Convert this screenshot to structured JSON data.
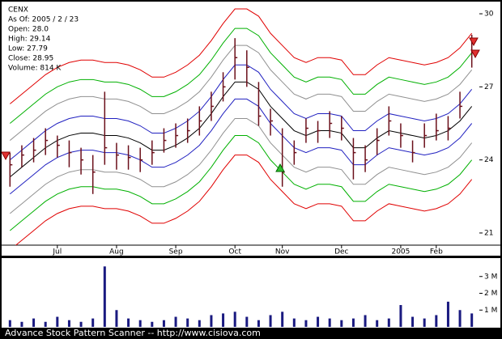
{
  "chart_data": [
    {
      "type": "ohlc",
      "categories": [
        null,
        null,
        null,
        null,
        "Jul",
        null,
        null,
        null,
        null,
        "Aug",
        null,
        null,
        null,
        null,
        "Sep",
        null,
        null,
        null,
        null,
        "Oct",
        null,
        null,
        null,
        "Nov",
        null,
        null,
        null,
        null,
        "Dec",
        null,
        null,
        null,
        null,
        "2005",
        null,
        null,
        "Feb",
        null,
        null,
        null
      ],
      "high": [
        24.3,
        24.6,
        24.9,
        25.3,
        25.0,
        24.8,
        24.5,
        24.2,
        26.8,
        24.7,
        24.6,
        24.5,
        24.8,
        25.3,
        25.5,
        25.7,
        26.2,
        26.8,
        27.6,
        29.0,
        28.5,
        27.2,
        26.1,
        25.3,
        24.8,
        25.7,
        25.6,
        26.0,
        25.8,
        24.9,
        24.6,
        25.3,
        26.2,
        25.5,
        24.8,
        25.5,
        25.9,
        25.8,
        26.8,
        29.14
      ],
      "low": [
        22.9,
        23.7,
        23.9,
        24.2,
        24.1,
        23.7,
        23.4,
        22.6,
        23.8,
        23.6,
        23.6,
        23.5,
        23.8,
        24.3,
        24.5,
        24.7,
        25.0,
        25.6,
        26.4,
        27.3,
        27.0,
        25.4,
        25.0,
        22.9,
        23.8,
        24.7,
        24.7,
        24.9,
        24.8,
        23.2,
        23.5,
        24.2,
        25.0,
        24.5,
        23.9,
        24.5,
        24.8,
        24.8,
        25.7,
        27.79
      ],
      "close": [
        23.8,
        24.2,
        24.4,
        24.8,
        24.6,
        24.3,
        24.0,
        23.5,
        24.5,
        24.2,
        24.1,
        24.0,
        24.3,
        24.8,
        25.0,
        25.2,
        25.6,
        26.2,
        27.0,
        28.2,
        27.8,
        25.8,
        25.6,
        23.5,
        24.3,
        25.3,
        25.2,
        25.5,
        25.3,
        24.3,
        24.0,
        24.8,
        25.6,
        25.0,
        24.3,
        25.0,
        25.2,
        25.3,
        26.2,
        28.95
      ],
      "color": "#6b0f1a",
      "series": [
        {
          "color": "#e00000",
          "values": [
            26.3,
            26.7,
            27.1,
            27.5,
            27.8,
            28.0,
            28.1,
            28.1,
            28.0,
            28.0,
            27.9,
            27.7,
            27.4,
            27.4,
            27.6,
            27.9,
            28.3,
            28.9,
            29.6,
            30.2,
            30.2,
            29.9,
            29.2,
            28.7,
            28.2,
            28.0,
            28.2,
            28.2,
            28.1,
            27.5,
            27.5,
            27.9,
            28.2,
            28.1,
            28.0,
            27.9,
            28.0,
            28.2,
            28.6,
            29.2
          ]
        },
        {
          "color": "#00b000",
          "values": [
            25.5,
            25.9,
            26.3,
            26.7,
            27.0,
            27.2,
            27.3,
            27.3,
            27.2,
            27.2,
            27.1,
            26.9,
            26.6,
            26.6,
            26.8,
            27.1,
            27.5,
            28.1,
            28.8,
            29.4,
            29.4,
            29.1,
            28.4,
            27.9,
            27.4,
            27.2,
            27.4,
            27.4,
            27.3,
            26.7,
            26.7,
            27.1,
            27.4,
            27.3,
            27.2,
            27.1,
            27.2,
            27.4,
            27.8,
            28.4
          ]
        },
        {
          "color": "#909090",
          "values": [
            24.8,
            25.2,
            25.6,
            26.0,
            26.3,
            26.5,
            26.6,
            26.6,
            26.5,
            26.5,
            26.4,
            26.2,
            25.9,
            25.9,
            26.1,
            26.4,
            26.8,
            27.4,
            28.1,
            28.7,
            28.7,
            28.4,
            27.7,
            27.2,
            26.7,
            26.5,
            26.7,
            26.7,
            26.6,
            26.0,
            26.0,
            26.4,
            26.7,
            26.6,
            26.5,
            26.4,
            26.5,
            26.7,
            27.1,
            27.7
          ]
        },
        {
          "color": "#2020c0",
          "values": [
            24.0,
            24.4,
            24.8,
            25.2,
            25.5,
            25.7,
            25.8,
            25.8,
            25.7,
            25.7,
            25.6,
            25.4,
            25.1,
            25.1,
            25.3,
            25.6,
            26.0,
            26.6,
            27.3,
            27.9,
            27.9,
            27.6,
            26.9,
            26.4,
            25.9,
            25.7,
            25.9,
            25.9,
            25.8,
            25.2,
            25.2,
            25.6,
            25.9,
            25.8,
            25.7,
            25.6,
            25.7,
            25.9,
            26.3,
            26.9
          ]
        },
        {
          "color": "#000000",
          "values": [
            23.3,
            23.7,
            24.1,
            24.5,
            24.8,
            25.0,
            25.1,
            25.1,
            25.0,
            25.0,
            24.9,
            24.7,
            24.4,
            24.4,
            24.6,
            24.9,
            25.3,
            25.9,
            26.6,
            27.2,
            27.2,
            26.9,
            26.2,
            25.7,
            25.2,
            25.0,
            25.2,
            25.2,
            25.1,
            24.5,
            24.5,
            24.9,
            25.2,
            25.1,
            25.0,
            24.9,
            25.0,
            25.2,
            25.6,
            26.2
          ]
        },
        {
          "color": "#2020c0",
          "values": [
            22.6,
            23.0,
            23.4,
            23.8,
            24.1,
            24.3,
            24.4,
            24.4,
            24.3,
            24.3,
            24.2,
            24.0,
            23.7,
            23.7,
            23.9,
            24.2,
            24.6,
            25.2,
            25.9,
            26.5,
            26.5,
            26.2,
            25.5,
            25.0,
            24.5,
            24.3,
            24.5,
            24.5,
            24.4,
            23.8,
            23.8,
            24.2,
            24.5,
            24.4,
            24.3,
            24.2,
            24.3,
            24.5,
            24.9,
            25.5
          ]
        },
        {
          "color": "#909090",
          "values": [
            21.8,
            22.2,
            22.6,
            23.0,
            23.3,
            23.5,
            23.6,
            23.6,
            23.5,
            23.5,
            23.4,
            23.2,
            22.9,
            22.9,
            23.1,
            23.4,
            23.8,
            24.4,
            25.1,
            25.7,
            25.7,
            25.4,
            24.7,
            24.2,
            23.7,
            23.5,
            23.7,
            23.7,
            23.6,
            23.0,
            23.0,
            23.4,
            23.7,
            23.6,
            23.5,
            23.4,
            23.5,
            23.7,
            24.1,
            24.7
          ]
        },
        {
          "color": "#00b000",
          "values": [
            21.1,
            21.5,
            21.9,
            22.3,
            22.6,
            22.8,
            22.9,
            22.9,
            22.8,
            22.8,
            22.7,
            22.5,
            22.2,
            22.2,
            22.4,
            22.7,
            23.1,
            23.7,
            24.4,
            25.0,
            25.0,
            24.7,
            24.0,
            23.5,
            23.0,
            22.8,
            23.0,
            23.0,
            22.9,
            22.3,
            22.3,
            22.7,
            23.0,
            22.9,
            22.8,
            22.7,
            22.8,
            23.0,
            23.4,
            24.0
          ]
        },
        {
          "color": "#e00000",
          "values": [
            20.3,
            20.7,
            21.1,
            21.5,
            21.8,
            22.0,
            22.1,
            22.1,
            22.0,
            22.0,
            21.9,
            21.7,
            21.4,
            21.4,
            21.6,
            21.9,
            22.3,
            22.9,
            23.6,
            24.2,
            24.2,
            23.9,
            23.2,
            22.7,
            22.2,
            22.0,
            22.2,
            22.2,
            22.1,
            21.5,
            21.5,
            21.9,
            22.2,
            22.1,
            22.0,
            21.9,
            22.0,
            22.2,
            22.6,
            23.2
          ]
        }
      ],
      "ylim": [
        20.6,
        30.4
      ],
      "yticks": [
        21,
        24,
        27,
        30
      ]
    },
    {
      "type": "bar",
      "color": "#1a1a80",
      "values": [
        0.4,
        0.3,
        0.5,
        0.3,
        0.6,
        0.4,
        0.3,
        0.5,
        3.6,
        1.0,
        0.5,
        0.4,
        0.3,
        0.4,
        0.6,
        0.5,
        0.4,
        0.7,
        0.8,
        0.9,
        0.6,
        0.4,
        0.7,
        0.9,
        0.5,
        0.4,
        0.6,
        0.5,
        0.4,
        0.5,
        0.7,
        0.4,
        0.5,
        1.3,
        0.6,
        0.5,
        0.7,
        1.5,
        1.0,
        0.8
      ],
      "ylim": [
        0,
        4
      ],
      "yticks": [
        {
          "value": 1,
          "label": "1 M"
        },
        {
          "value": 2,
          "label": "2 M"
        },
        {
          "value": 3,
          "label": "3 M"
        }
      ]
    }
  ],
  "info": [
    "CENX",
    "As Of: 2005 / 2 / 23",
    "Open: 28.0",
    "High: 29.14",
    "Low: 27.79",
    "Close: 28.95",
    "Volume: 814 K"
  ],
  "footer": "Advance Stock Pattern Scanner -- http://www.cisiova.com"
}
